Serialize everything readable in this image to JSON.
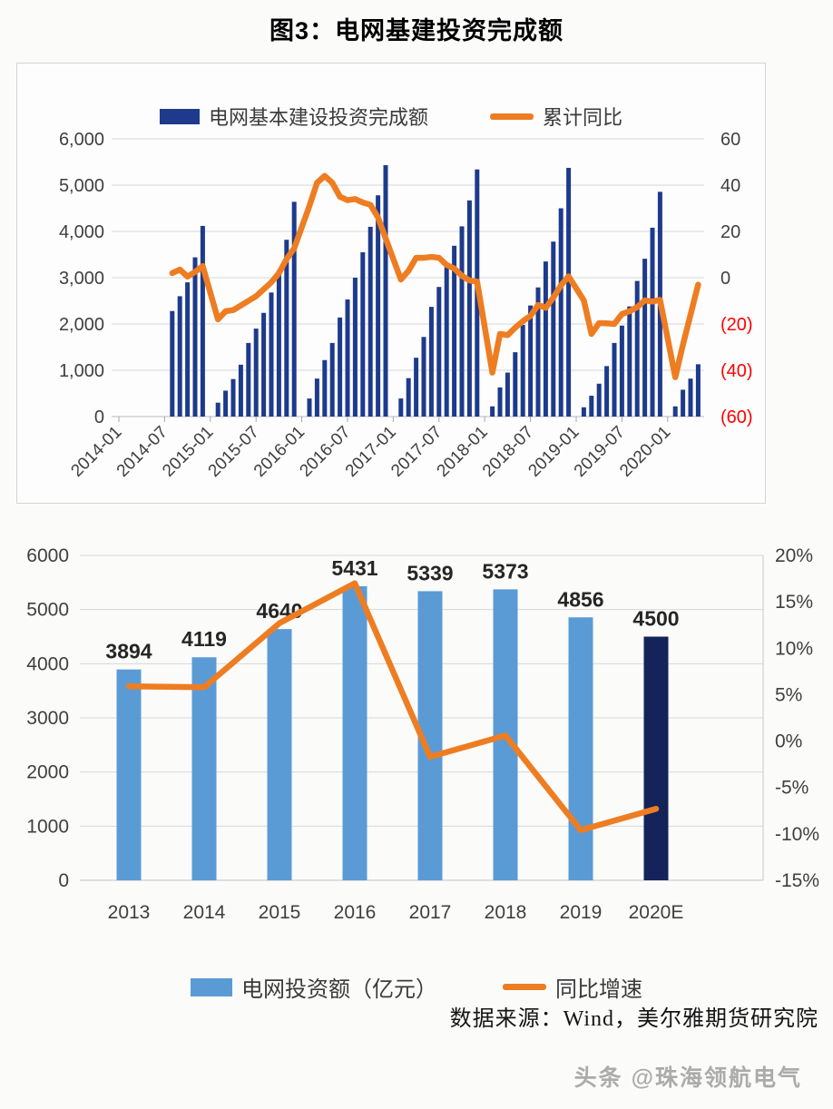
{
  "page": {
    "title": "图3：电网基建投资完成额",
    "source": "数据来源：Wind，美尔雅期货研究院",
    "watermark": "头条 @珠海领航电气"
  },
  "colors": {
    "navy": "#1d3a8c",
    "navy_dark": "#14235a",
    "light_blue": "#5b9bd5",
    "orange": "#ee7d22",
    "red": "#fe0000",
    "axis_text": "#3f3f3f",
    "grid": "#d8d8d8",
    "axis_line": "#b9b9b9",
    "label_dark": "#262626"
  },
  "chart_data": [
    {
      "type": "bar+line",
      "title": "",
      "legend": [
        "电网基本建设投资完成额",
        "累计同比"
      ],
      "legend_position": "top",
      "grid": true,
      "left_axis": {
        "min": 0,
        "max": 6000,
        "ticks": [
          {
            "value": 0,
            "label": "0"
          },
          {
            "value": 1000,
            "label": "1,000"
          },
          {
            "value": 2000,
            "label": "2,000"
          },
          {
            "value": 3000,
            "label": "3,000"
          },
          {
            "value": 4000,
            "label": "4,000"
          },
          {
            "value": 5000,
            "label": "5,000"
          },
          {
            "value": 6000,
            "label": "6,000"
          }
        ]
      },
      "right_axis": {
        "min": -60,
        "max": 60,
        "unit": "%",
        "ticks": [
          {
            "value": 60,
            "label": "60",
            "negative": false
          },
          {
            "value": 40,
            "label": "40",
            "negative": false
          },
          {
            "value": 20,
            "label": "20",
            "negative": false
          },
          {
            "value": 0,
            "label": "0",
            "negative": false
          },
          {
            "value": -20,
            "label": "(20)",
            "negative": true
          },
          {
            "value": -40,
            "label": "(40)",
            "negative": true
          },
          {
            "value": -60,
            "label": "(60)",
            "negative": true
          }
        ]
      },
      "x_ticks": [
        "2014-01",
        "2014-07",
        "2015-01",
        "2015-07",
        "2016-01",
        "2016-07",
        "2017-01",
        "2017-07",
        "2018-01",
        "2018-07",
        "2019-01",
        "2019-07",
        "2020-01"
      ],
      "months": [
        "2014-08",
        "2014-09",
        "2014-10",
        "2014-11",
        "2014-12",
        "2015-02",
        "2015-03",
        "2015-04",
        "2015-05",
        "2015-06",
        "2015-07",
        "2015-08",
        "2015-09",
        "2015-10",
        "2015-11",
        "2015-12",
        "2016-02",
        "2016-03",
        "2016-04",
        "2016-05",
        "2016-06",
        "2016-07",
        "2016-08",
        "2016-09",
        "2016-10",
        "2016-11",
        "2016-12",
        "2017-02",
        "2017-03",
        "2017-04",
        "2017-05",
        "2017-06",
        "2017-07",
        "2017-08",
        "2017-09",
        "2017-10",
        "2017-11",
        "2017-12",
        "2018-02",
        "2018-03",
        "2018-04",
        "2018-05",
        "2018-06",
        "2018-07",
        "2018-08",
        "2018-09",
        "2018-10",
        "2018-11",
        "2018-12",
        "2019-02",
        "2019-03",
        "2019-04",
        "2019-05",
        "2019-06",
        "2019-07",
        "2019-08",
        "2019-09",
        "2019-10",
        "2019-11",
        "2019-12",
        "2020-02",
        "2020-03",
        "2020-04",
        "2020-05"
      ],
      "bar_values": [
        2280,
        2600,
        2900,
        3440,
        4119,
        300,
        560,
        810,
        1120,
        1590,
        1900,
        2240,
        2680,
        3160,
        3820,
        4640,
        390,
        820,
        1220,
        1590,
        2140,
        2530,
        3000,
        3550,
        4100,
        4780,
        5431,
        390,
        830,
        1270,
        1720,
        2370,
        2800,
        3230,
        3690,
        4110,
        4670,
        5339,
        220,
        630,
        950,
        1390,
        1980,
        2400,
        2790,
        3350,
        3780,
        4500,
        5373,
        200,
        450,
        710,
        1090,
        1590,
        1965,
        2380,
        2930,
        3410,
        4080,
        4856,
        220,
        580,
        820,
        1130
      ],
      "line_values": [
        2,
        3.5,
        0.5,
        2.5,
        5,
        -18,
        -14.5,
        -14,
        -12,
        -10,
        -8,
        -5,
        -2,
        2,
        8,
        12.7,
        31,
        41,
        44,
        41,
        35,
        33.5,
        34,
        32.5,
        31.5,
        26,
        17,
        -0.8,
        3,
        8.6,
        8.6,
        9,
        8.6,
        5.5,
        4,
        0.8,
        -1.2,
        -1.7,
        -41,
        -24.3,
        -24.8,
        -21.6,
        -18.8,
        -16.5,
        -11.8,
        -13,
        -8.6,
        -3.3,
        0.6,
        -9.8,
        -24.3,
        -19.6,
        -19.7,
        -20,
        -15.7,
        -14.5,
        -12.7,
        -9.8,
        -10.3,
        -9.6,
        -43,
        -29,
        -16,
        -3
      ]
    },
    {
      "type": "bar+line",
      "title": "",
      "legend": [
        "电网投资额（亿元）",
        "同比增速"
      ],
      "legend_position": "bottom",
      "grid": true,
      "categories": [
        "2013",
        "2014",
        "2015",
        "2016",
        "2017",
        "2018",
        "2019",
        "2020E"
      ],
      "bar_values": [
        3894,
        4119,
        4640,
        5431,
        5339,
        5373,
        4856,
        4500
      ],
      "bar_labels": [
        "3894",
        "4119",
        "4640",
        "5431",
        "5339",
        "5373",
        "4856",
        "4500"
      ],
      "bar_colors": [
        "#5b9bd5",
        "#5b9bd5",
        "#5b9bd5",
        "#5b9bd5",
        "#5b9bd5",
        "#5b9bd5",
        "#5b9bd5",
        "#14235a"
      ],
      "line_values": [
        5.9,
        5.8,
        12.7,
        17,
        -1.7,
        0.6,
        -9.6,
        -7.3
      ],
      "left_axis": {
        "min": 0,
        "max": 6000,
        "ticks": [
          {
            "value": 0,
            "label": "0"
          },
          {
            "value": 1000,
            "label": "1000"
          },
          {
            "value": 2000,
            "label": "2000"
          },
          {
            "value": 3000,
            "label": "3000"
          },
          {
            "value": 4000,
            "label": "4000"
          },
          {
            "value": 5000,
            "label": "5000"
          },
          {
            "value": 6000,
            "label": "6000"
          }
        ]
      },
      "right_axis": {
        "min": -15,
        "max": 20,
        "unit": "%",
        "ticks": [
          {
            "value": 20,
            "label": "20%"
          },
          {
            "value": 15,
            "label": "15%"
          },
          {
            "value": 10,
            "label": "10%"
          },
          {
            "value": 5,
            "label": "5%"
          },
          {
            "value": 0,
            "label": "0%"
          },
          {
            "value": -5,
            "label": "-5%"
          },
          {
            "value": -10,
            "label": "-10%"
          },
          {
            "value": -15,
            "label": "-15%"
          }
        ]
      }
    }
  ]
}
